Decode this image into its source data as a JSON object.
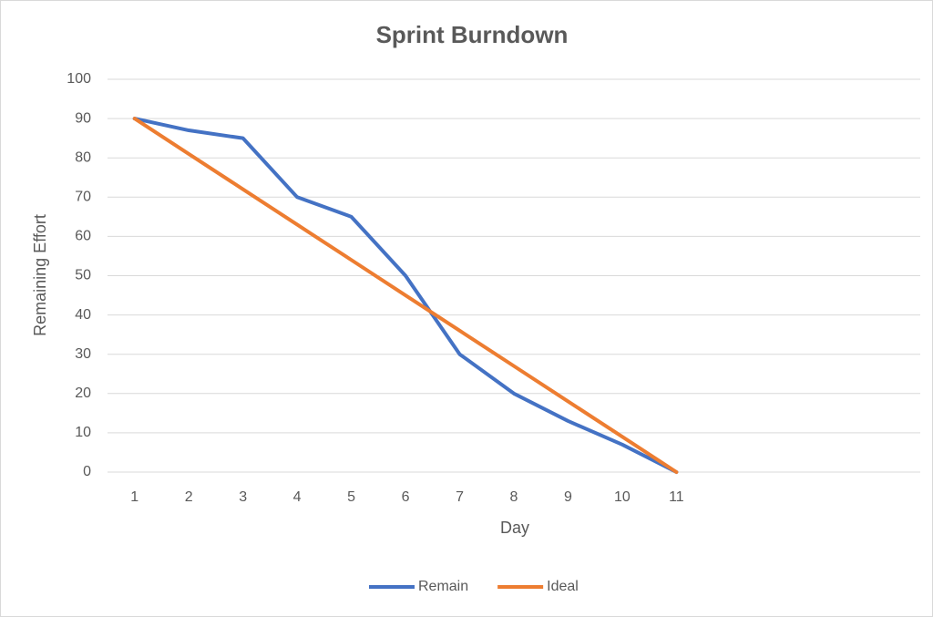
{
  "chart_data": {
    "type": "line",
    "title": "Sprint Burndown",
    "x_label": "Day",
    "y_label": "Remaining Effort",
    "categories": [
      "1",
      "2",
      "3",
      "4",
      "5",
      "6",
      "7",
      "8",
      "9",
      "10",
      "11",
      null,
      null,
      null,
      null
    ],
    "series": [
      {
        "name": "Remain",
        "color": "#4472c4",
        "values": [
          90,
          87,
          85,
          70,
          65,
          50,
          30,
          20,
          13,
          7,
          0,
          null,
          null,
          null,
          null
        ]
      },
      {
        "name": "Ideal",
        "color": "#ed7d31",
        "values": [
          90,
          81,
          72,
          63,
          54,
          45,
          36,
          27,
          18,
          9,
          0,
          null,
          null,
          null,
          null
        ]
      }
    ],
    "ylim": [
      0,
      100
    ],
    "yticks": [
      0,
      10,
      20,
      30,
      40,
      50,
      60,
      70,
      80,
      90,
      100
    ],
    "grid": true,
    "legend": "bottom"
  }
}
